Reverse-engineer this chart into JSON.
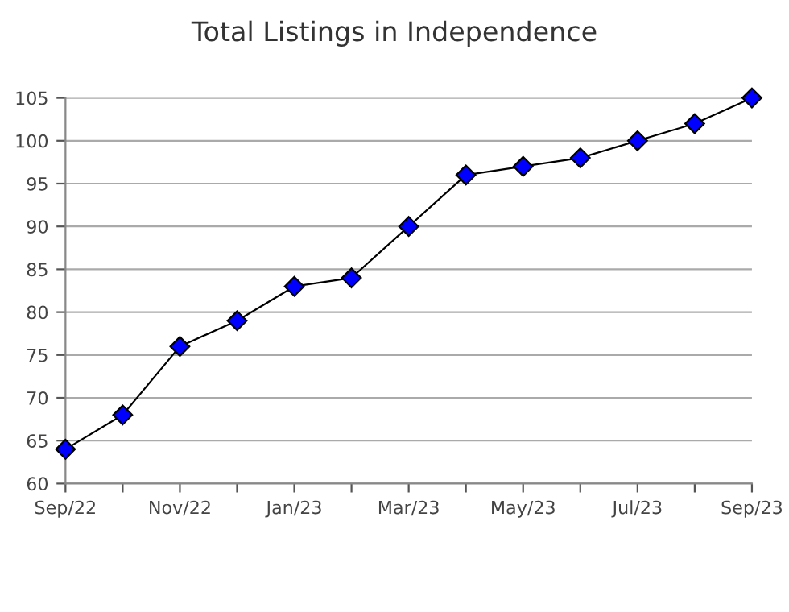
{
  "chart_data": {
    "type": "line",
    "title": "Total Listings in Independence",
    "categories": [
      "Sep/22",
      null,
      "Nov/22",
      null,
      "Jan/23",
      null,
      "Mar/23",
      null,
      "May/23",
      null,
      "Jul/23",
      null,
      "Sep/23"
    ],
    "series": [
      {
        "color": "#0000ff",
        "values": [
          64,
          68,
          76,
          79,
          83,
          84,
          90,
          96,
          97,
          98,
          100,
          102,
          105
        ]
      }
    ],
    "ylim": [
      60,
      105
    ],
    "yticks": [
      60,
      65,
      70,
      75,
      80,
      85,
      90,
      95,
      100,
      105
    ],
    "grid": "y",
    "marker": "diamond",
    "line_style": "solid"
  }
}
